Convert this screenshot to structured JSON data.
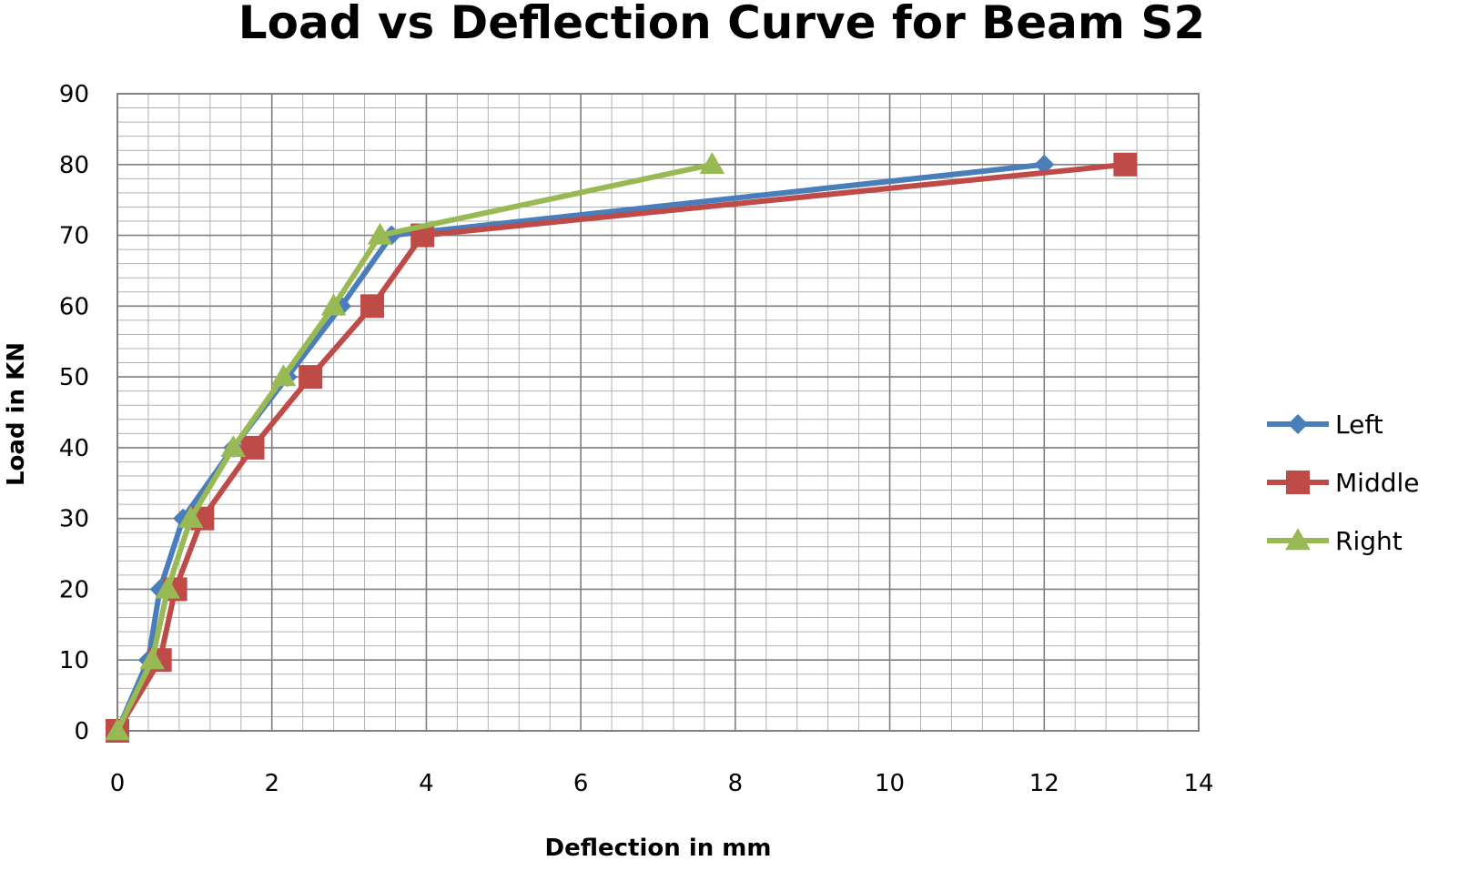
{
  "chart_data": {
    "type": "line",
    "title": "Load vs Deflection Curve for Beam S2",
    "xlabel": "Deflection in mm",
    "ylabel": "Load in KN",
    "xlim": [
      0,
      14
    ],
    "ylim": [
      0,
      90
    ],
    "x_ticks": [
      0,
      2,
      4,
      6,
      8,
      10,
      12,
      14
    ],
    "y_ticks": [
      0,
      10,
      20,
      30,
      40,
      50,
      60,
      70,
      80,
      90
    ],
    "grid": true,
    "legend": "right",
    "series": [
      {
        "name": "Left",
        "color": "#4a7ebb",
        "marker": "diamond",
        "points": [
          [
            0,
            0
          ],
          [
            0.4,
            10
          ],
          [
            0.55,
            20
          ],
          [
            0.85,
            30
          ],
          [
            1.5,
            40
          ],
          [
            2.2,
            50
          ],
          [
            2.9,
            60
          ],
          [
            3.55,
            70
          ],
          [
            12.0,
            80
          ]
        ]
      },
      {
        "name": "Middle",
        "color": "#be4b48",
        "marker": "square",
        "points": [
          [
            0,
            0
          ],
          [
            0.55,
            10
          ],
          [
            0.75,
            20
          ],
          [
            1.1,
            30
          ],
          [
            1.75,
            40
          ],
          [
            2.5,
            50
          ],
          [
            3.3,
            60
          ],
          [
            3.95,
            70
          ],
          [
            13.05,
            80
          ]
        ]
      },
      {
        "name": "Right",
        "color": "#98b954",
        "marker": "triangle",
        "points": [
          [
            0,
            0
          ],
          [
            0.45,
            10
          ],
          [
            0.65,
            20
          ],
          [
            0.95,
            30
          ],
          [
            1.5,
            40
          ],
          [
            2.15,
            50
          ],
          [
            2.8,
            60
          ],
          [
            3.4,
            70
          ],
          [
            7.7,
            80
          ]
        ]
      }
    ]
  }
}
